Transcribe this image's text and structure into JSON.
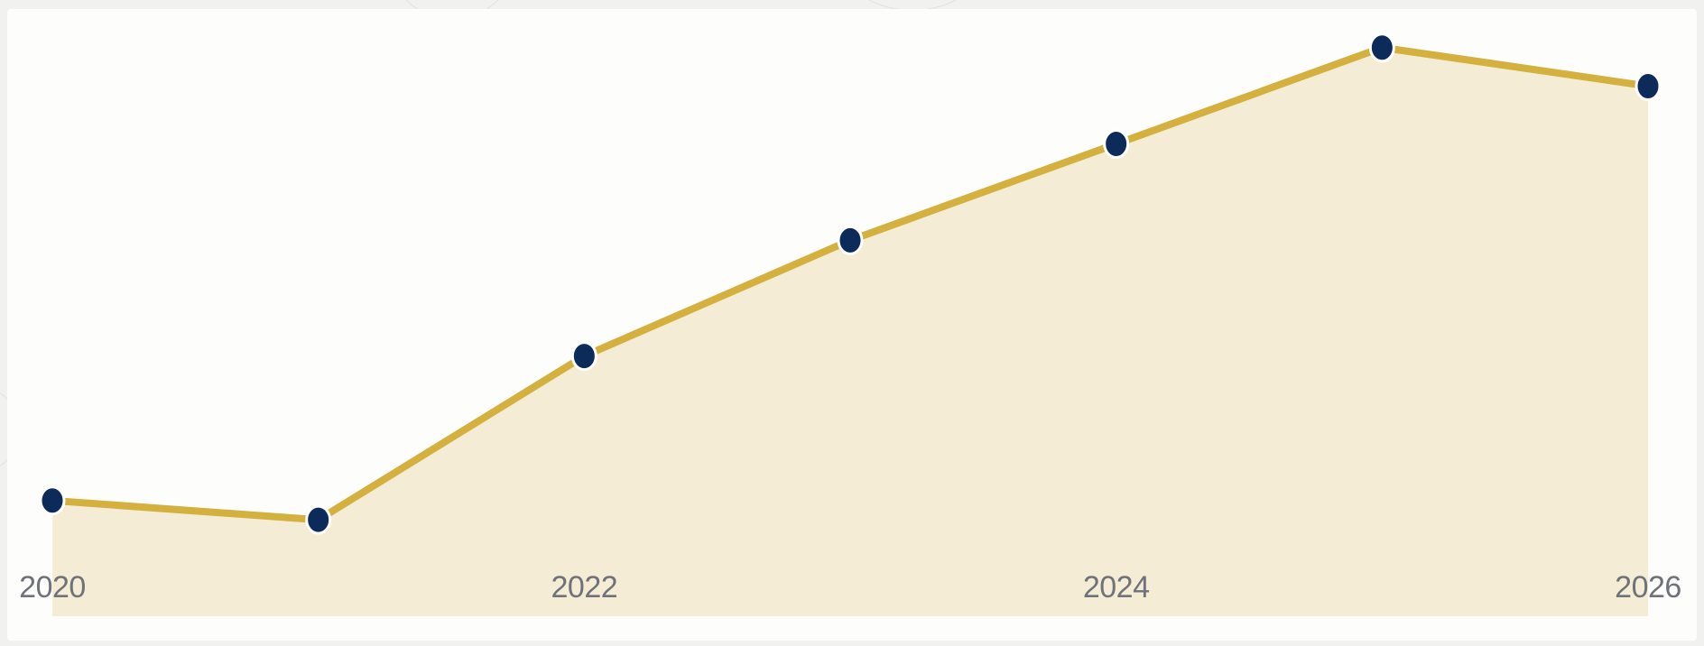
{
  "colors": {
    "line": "#d4b03e",
    "area": "#f4ecd5",
    "marker": "#0c2b5b",
    "marker_outline": "#ffffff",
    "tick_text": "#6f7278"
  },
  "chart_data": {
    "type": "area",
    "title": "",
    "xlabel": "",
    "ylabel": "",
    "grid": false,
    "legend": "none",
    "x_ticks": [
      "2020",
      "2022",
      "2024",
      "2026"
    ],
    "series": [
      {
        "x": [
          2020,
          2021,
          2022,
          2023,
          2024,
          2025,
          2026
        ],
        "values": [
          12,
          10,
          27,
          39,
          49,
          59,
          55
        ]
      }
    ],
    "xlim": [
      2020,
      2026
    ],
    "ylim": [
      0,
      63
    ]
  }
}
